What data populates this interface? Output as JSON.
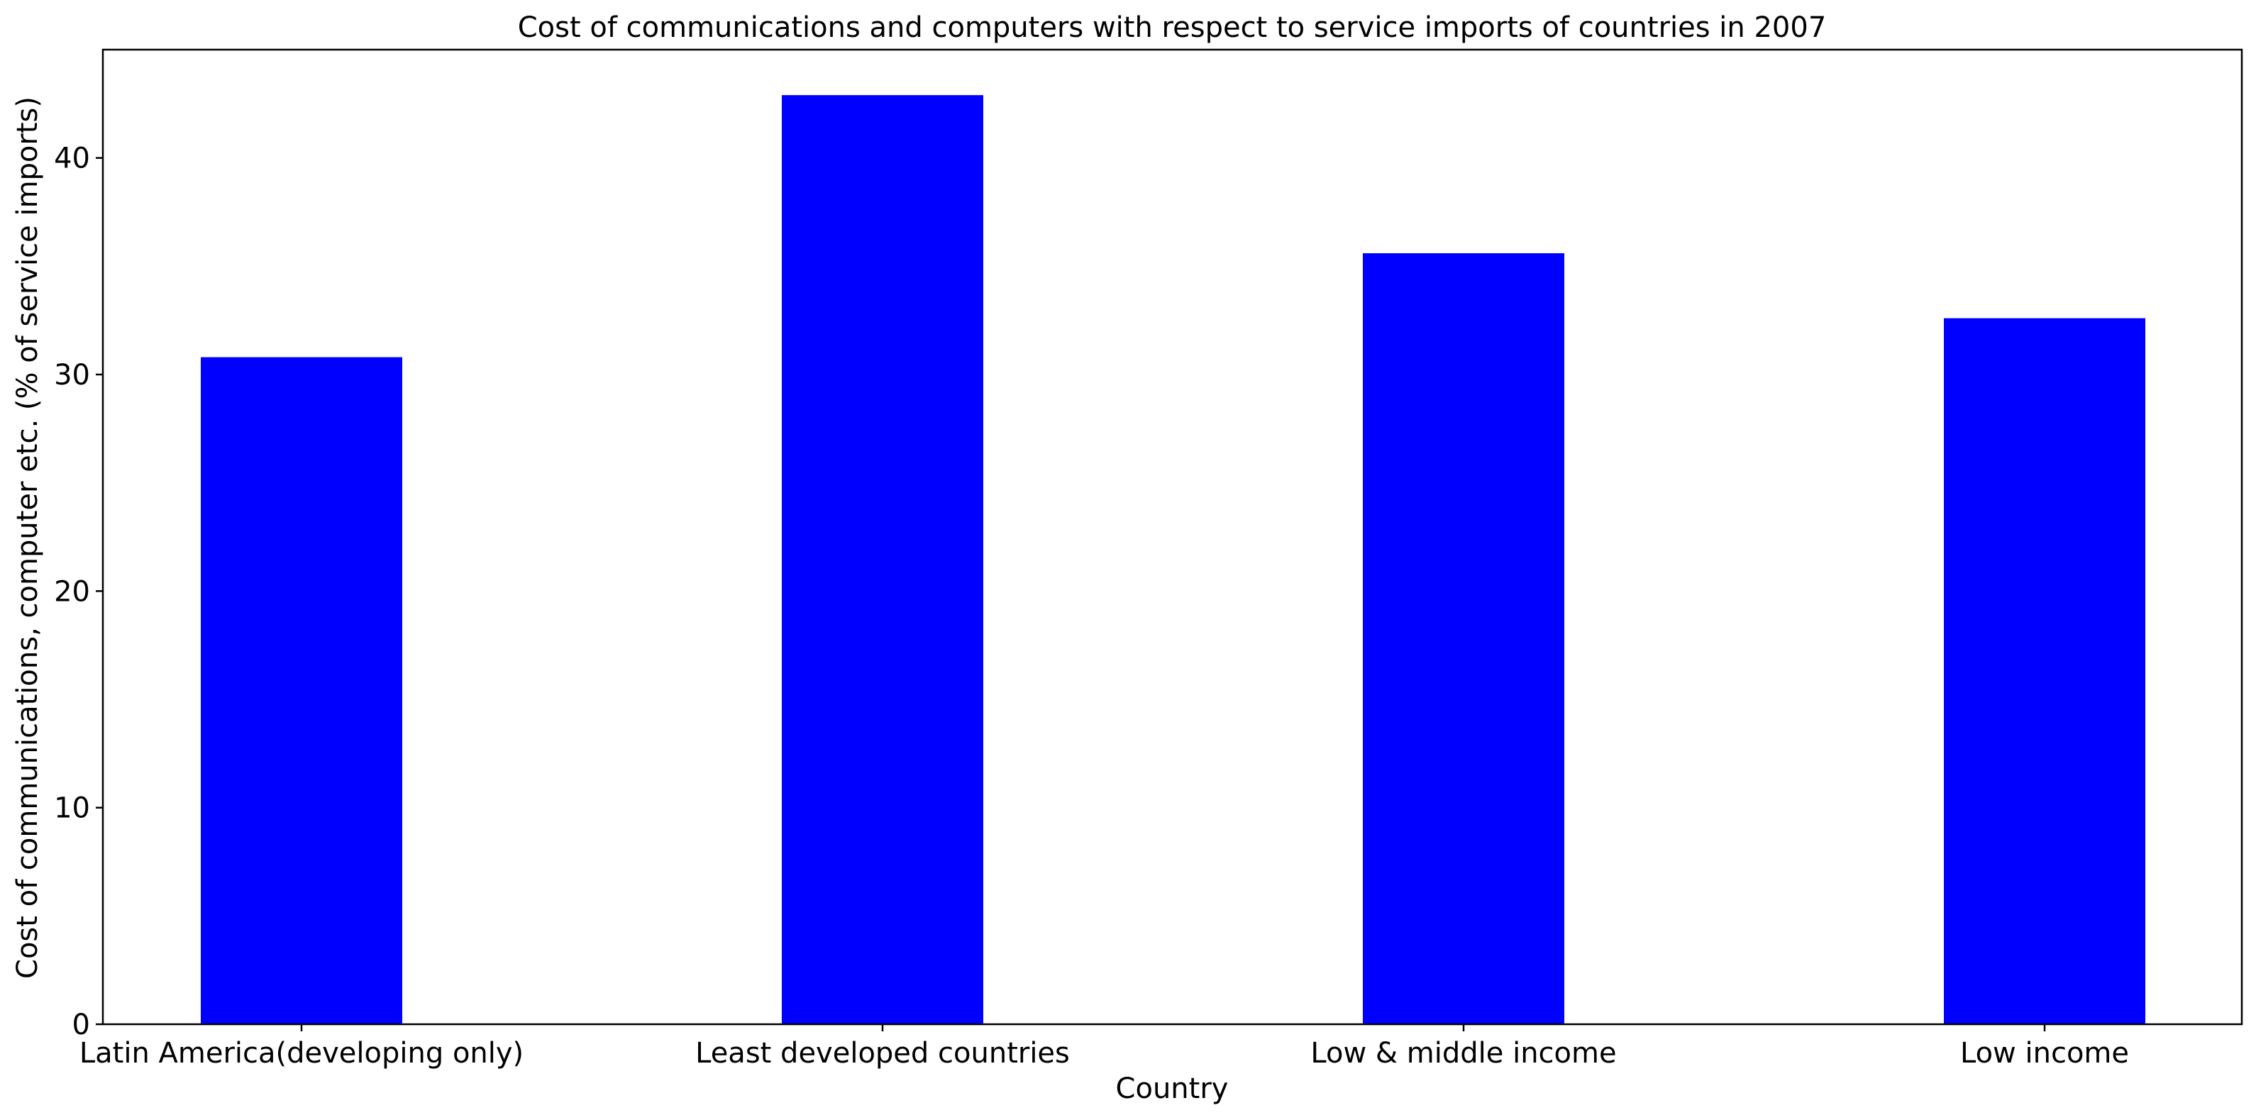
{
  "chart_data": {
    "type": "bar",
    "title": "Cost of communications and computers with respect to service imports of countries in 2007",
    "xlabel": "Country",
    "ylabel": "Cost of communications, computer etc. (% of service imports)",
    "categories": [
      "Latin America(developing only)",
      "Least developed countries",
      "Low & middle income",
      "Low income"
    ],
    "values": [
      30.8,
      42.9,
      35.6,
      32.6
    ],
    "ylim": [
      0,
      45
    ],
    "yticks": [
      0,
      10,
      20,
      30,
      40
    ],
    "bar_color": "#0000ff",
    "grid": false,
    "legend": false
  }
}
